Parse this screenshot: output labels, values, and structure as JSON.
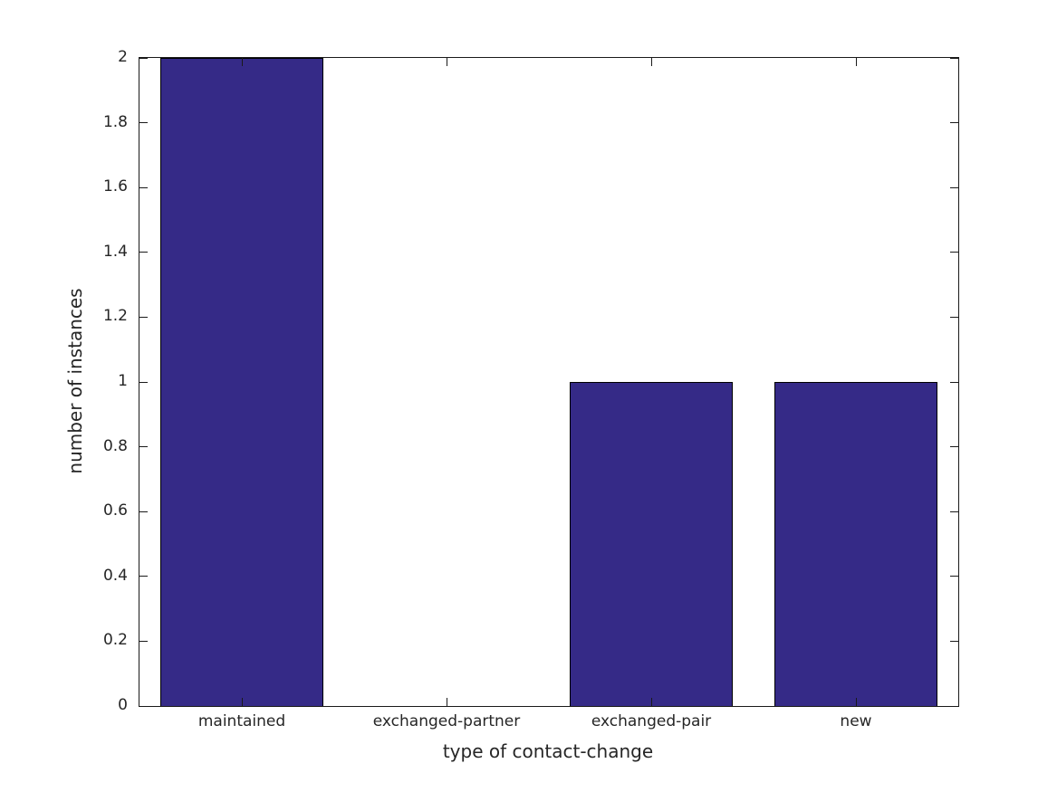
{
  "figure": {
    "background_color": "#ffffff",
    "axis_color": "#1a1a1a",
    "text_color": "#262626"
  },
  "chart_data": {
    "type": "bar",
    "title": "",
    "xlabel": "type of contact-change",
    "ylabel": "number of instances",
    "categories": [
      "maintained",
      "exchanged-partner",
      "exchanged-pair",
      "new"
    ],
    "values": [
      2,
      0,
      1,
      1
    ],
    "ylim": [
      0,
      2
    ],
    "ytick_values": [
      0,
      0.2,
      0.4,
      0.6,
      0.8,
      1,
      1.2,
      1.4,
      1.6,
      1.8,
      2
    ],
    "ytick_labels": [
      "0",
      "0.2",
      "0.4",
      "0.6",
      "0.8",
      "1",
      "1.2",
      "1.4",
      "1.6",
      "1.8",
      "2"
    ],
    "bar_color": "#352A87",
    "bar_edge_color": "#000000",
    "bar_width_fraction": 0.8,
    "grid": false,
    "legend": null,
    "box": true,
    "ticks_mirrored": true
  }
}
